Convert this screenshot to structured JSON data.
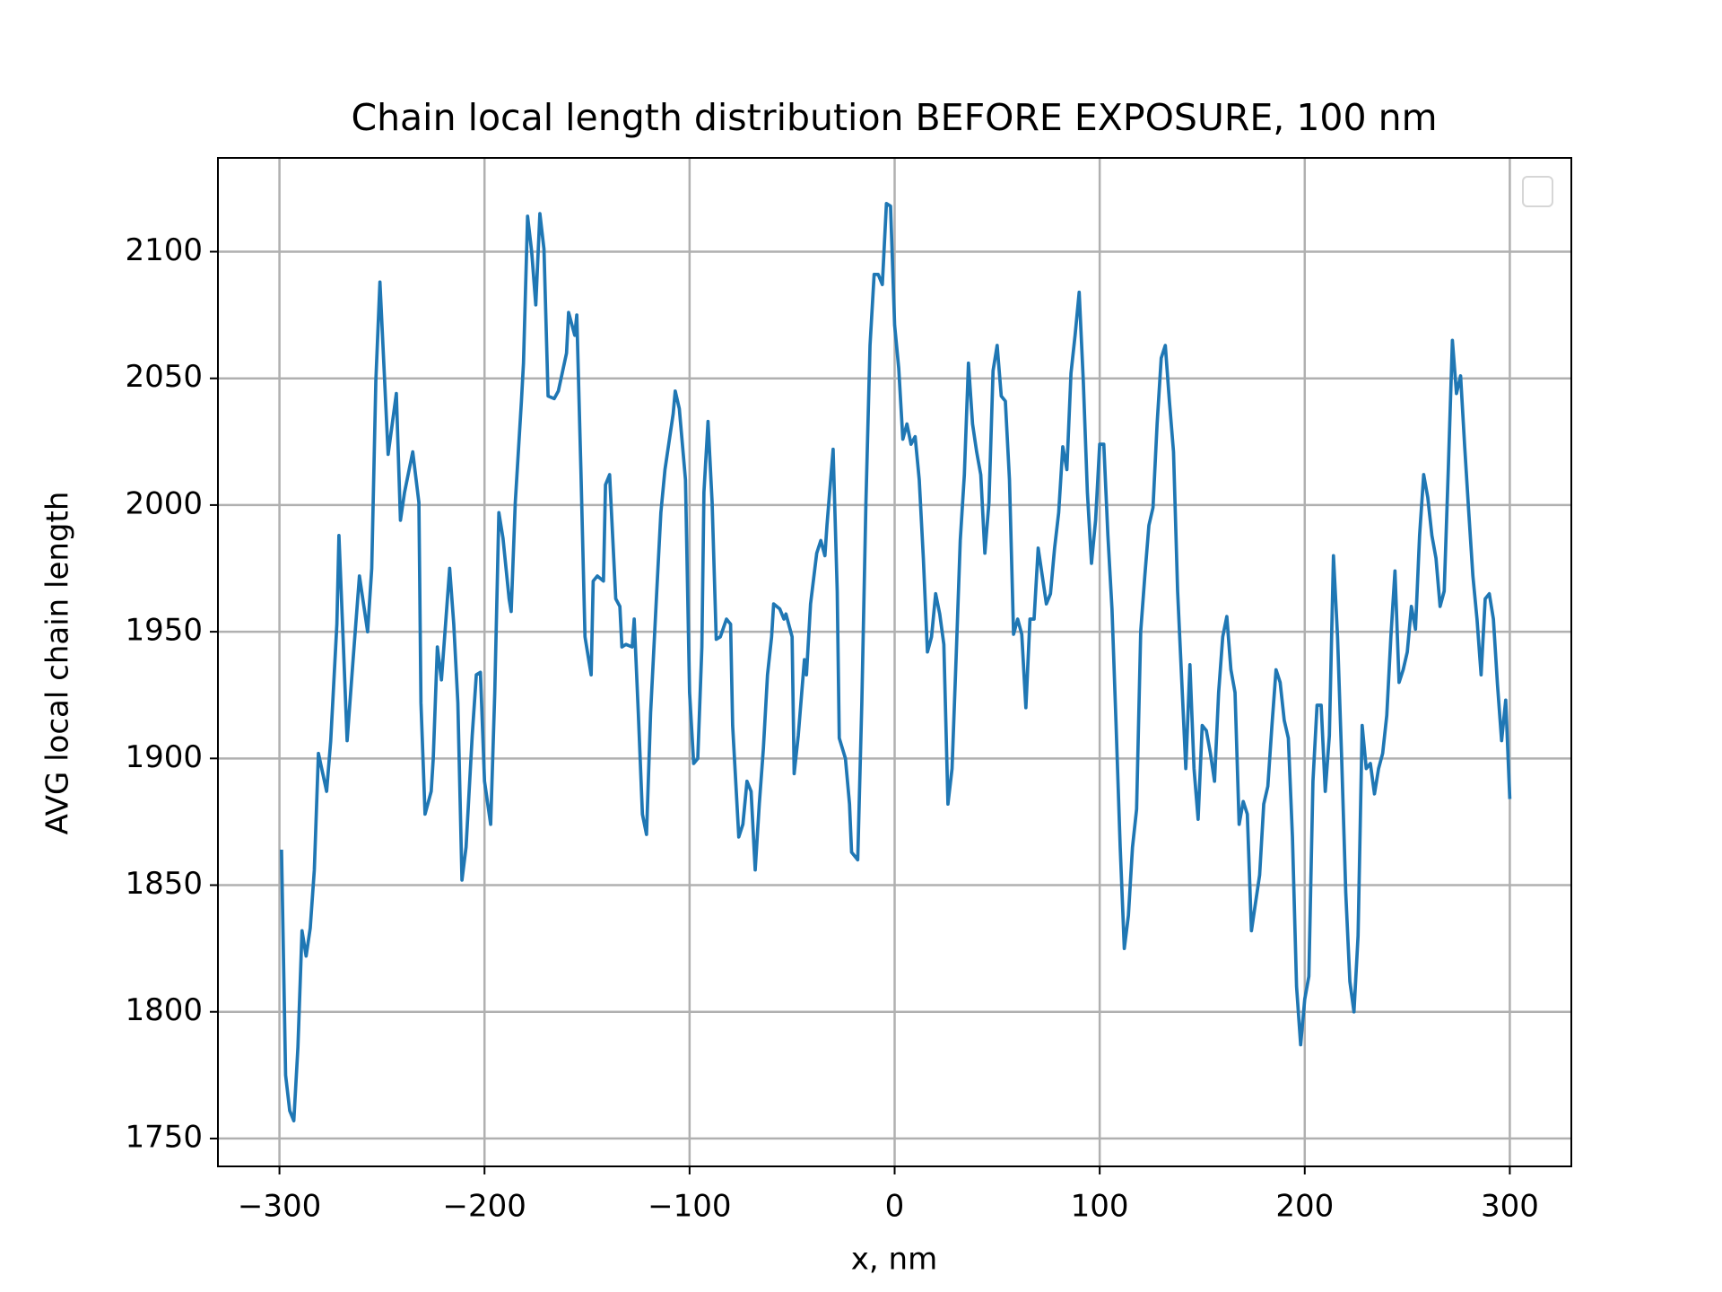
{
  "chart_data": {
    "type": "line",
    "title": "Chain local length distribution BEFORE EXPOSURE, 100 nm",
    "x_label": "x, nm",
    "y_label": "AVG local chain length",
    "x": [
      -299,
      -297,
      -295,
      -293,
      -291,
      -289,
      -287,
      -285,
      -283,
      -281,
      -277,
      -275,
      -272,
      -271,
      -269,
      -267,
      -264,
      -261,
      -257,
      -255,
      -253,
      -251,
      -247,
      -243,
      -241,
      -239,
      -235,
      -232,
      -231,
      -229,
      -226,
      -225,
      -223,
      -221,
      -217,
      -215,
      -213,
      -211,
      -209,
      -206,
      -204,
      -202,
      -200,
      -197,
      -195,
      -193,
      -191,
      -188,
      -187,
      -185,
      -182,
      -181,
      -179,
      -177,
      -175,
      -173,
      -171,
      -169,
      -166,
      -164,
      -160,
      -159,
      -156,
      -155,
      -153,
      -151,
      -148,
      -147,
      -145,
      -142,
      -141,
      -139,
      -136,
      -134,
      -133,
      -131,
      -128,
      -127,
      -125,
      -123,
      -121,
      -119,
      -116,
      -114,
      -112,
      -108,
      -107,
      -105,
      -102,
      -100,
      -98,
      -96,
      -94,
      -93,
      -91,
      -89,
      -87,
      -85,
      -82,
      -80,
      -79,
      -76,
      -74,
      -72,
      -70,
      -68,
      -66,
      -64,
      -62,
      -60,
      -59,
      -56,
      -54,
      -53,
      -50,
      -49,
      -47,
      -44,
      -43,
      -41,
      -38,
      -36,
      -34,
      -33,
      -30,
      -28,
      -27,
      -24,
      -22,
      -21,
      -18,
      -16,
      -14,
      -12,
      -10,
      -8,
      -6,
      -4,
      -2,
      0,
      2,
      4,
      6,
      8,
      10,
      12,
      14,
      16,
      18,
      20,
      22,
      24,
      26,
      28,
      30,
      32,
      34,
      36,
      38,
      40,
      42,
      44,
      46,
      48,
      50,
      52,
      54,
      56,
      58,
      60,
      62,
      64,
      66,
      68,
      70,
      72,
      74,
      76,
      78,
      80,
      82,
      84,
      86,
      88,
      90,
      92,
      94,
      96,
      98,
      100,
      102,
      104,
      106,
      108,
      110,
      112,
      114,
      116,
      118,
      120,
      122,
      124,
      126,
      128,
      130,
      132,
      134,
      136,
      138,
      140,
      142,
      144,
      146,
      148,
      150,
      152,
      154,
      156,
      158,
      160,
      162,
      164,
      166,
      168,
      170,
      172,
      174,
      176,
      178,
      180,
      182,
      184,
      186,
      188,
      190,
      192,
      194,
      196,
      198,
      200,
      202,
      204,
      206,
      208,
      210,
      212,
      214,
      216,
      218,
      220,
      222,
      224,
      226,
      228,
      230,
      232,
      234,
      236,
      238,
      240,
      242,
      244,
      246,
      248,
      250,
      252,
      254,
      256,
      258,
      260,
      262,
      264,
      266,
      268,
      270,
      272,
      274,
      276,
      278,
      280,
      282,
      284,
      286,
      288,
      290,
      292,
      294,
      296,
      298,
      300
    ],
    "series": [
      {
        "color": "#1f77b4",
        "values": [
          1864,
          1775,
          1761,
          1757,
          1786,
          1832,
          1822,
          1833,
          1856,
          1902,
          1887,
          1907,
          1953,
          1988,
          1948,
          1907,
          1940,
          1972,
          1950,
          1975,
          2049,
          2088,
          2020,
          2044,
          1994,
          2005,
          2021,
          2001,
          1922,
          1878,
          1887,
          1900,
          1944,
          1931,
          1975,
          1953,
          1922,
          1852,
          1865,
          1909,
          1933,
          1934,
          1891,
          1874,
          1926,
          1997,
          1987,
          1963,
          1958,
          2001,
          2041,
          2056,
          2114,
          2100,
          2079,
          2115,
          2101,
          2043,
          2042,
          2045,
          2060,
          2076,
          2067,
          2075,
          2014,
          1948,
          1933,
          1970,
          1972,
          1970,
          2008,
          2012,
          1963,
          1960,
          1944,
          1945,
          1944,
          1955,
          1918,
          1878,
          1870,
          1918,
          1966,
          1997,
          2014,
          2036,
          2045,
          2038,
          2010,
          1926,
          1898,
          1900,
          1944,
          2005,
          2033,
          2001,
          1947,
          1948,
          1955,
          1953,
          1913,
          1869,
          1874,
          1891,
          1887,
          1856,
          1882,
          1904,
          1933,
          1948,
          1961,
          1959,
          1955,
          1957,
          1948,
          1894,
          1909,
          1939,
          1933,
          1961,
          1981,
          1986,
          1980,
          1992,
          2022,
          1966,
          1908,
          1900,
          1882,
          1863,
          1860,
          1922,
          2001,
          2063,
          2091,
          2091,
          2087,
          2119,
          2118,
          2071,
          2054,
          2026,
          2032,
          2024,
          2027,
          2010,
          1979,
          1942,
          1948,
          1965,
          1957,
          1945,
          1882,
          1896,
          1940,
          1986,
          2012,
          2056,
          2032,
          2021,
          2012,
          1981,
          2001,
          2053,
          2063,
          2043,
          2041,
          2010,
          1949,
          1955,
          1949,
          1920,
          1955,
          1955,
          1983,
          1972,
          1961,
          1965,
          1983,
          1997,
          2023,
          2014,
          2052,
          2067,
          2084,
          2049,
          2005,
          1977,
          1994,
          2024,
          2024,
          1988,
          1959,
          1913,
          1865,
          1825,
          1838,
          1865,
          1880,
          1950,
          1972,
          1992,
          1999,
          2032,
          2058,
          2063,
          2041,
          2021,
          1966,
          1931,
          1896,
          1937,
          1896,
          1876,
          1913,
          1911,
          1902,
          1891,
          1926,
          1948,
          1956,
          1935,
          1926,
          1874,
          1883,
          1878,
          1832,
          1843,
          1854,
          1882,
          1889,
          1913,
          1935,
          1930,
          1915,
          1908,
          1869,
          1810,
          1787,
          1805,
          1814,
          1891,
          1921,
          1921,
          1887,
          1909,
          1980,
          1948,
          1900,
          1847,
          1812,
          1800,
          1830,
          1913,
          1896,
          1898,
          1886,
          1896,
          1902,
          1917,
          1948,
          1974,
          1930,
          1935,
          1942,
          1960,
          1951,
          1988,
          2012,
          2003,
          1988,
          1979,
          1960,
          1966,
          2014,
          2065,
          2044,
          2051,
          2023,
          1997,
          1972,
          1955,
          1933,
          1963,
          1965,
          1955,
          1929,
          1907,
          1923,
          1884
        ]
      }
    ],
    "xlim": [
      -330,
      330
    ],
    "ylim": [
      1739,
      2137
    ],
    "xticks": [
      {
        "value": -300,
        "label": "−300"
      },
      {
        "value": -200,
        "label": "−200"
      },
      {
        "value": -100,
        "label": "−100"
      },
      0,
      100,
      200,
      300
    ],
    "yticks": [
      1750,
      1800,
      1850,
      1900,
      1950,
      2000,
      2050,
      2100
    ],
    "grid": true
  }
}
